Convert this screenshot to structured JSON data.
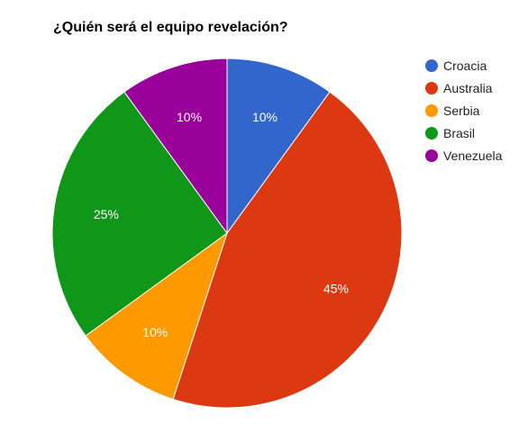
{
  "chart_data": {
    "type": "pie",
    "title": "¿Quién será el equipo revelación?",
    "categories": [
      "Croacia",
      "Australia",
      "Serbia",
      "Brasil",
      "Venezuela"
    ],
    "values": [
      10,
      45,
      10,
      25,
      10
    ],
    "data_labels": [
      "10%",
      "45%",
      "10%",
      "25%",
      "10%"
    ],
    "colors": [
      "#3366cc",
      "#dc3912",
      "#ff9900",
      "#109618",
      "#990099"
    ],
    "legend_position": "right",
    "start_angle_deg": 0,
    "direction": "clockwise"
  }
}
